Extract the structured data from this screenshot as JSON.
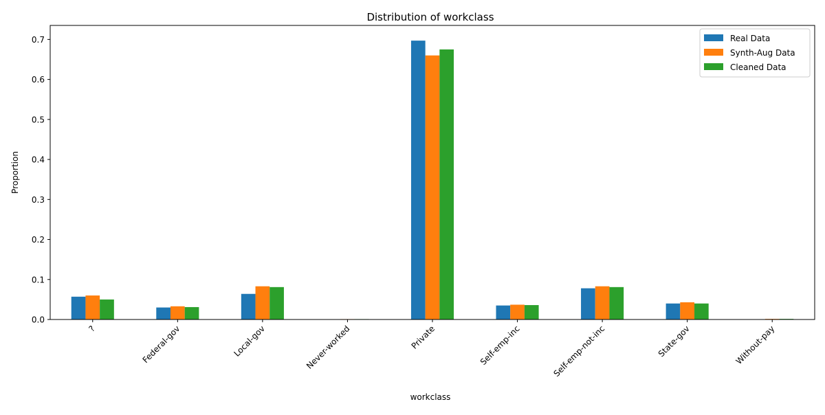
{
  "chart_data": {
    "type": "bar",
    "title": "Distribution of workclass",
    "xlabel": "workclass",
    "ylabel": "Proportion",
    "ylim": [
      0,
      0.735
    ],
    "yticks": [
      0.0,
      0.1,
      0.2,
      0.3,
      0.4,
      0.5,
      0.6,
      0.7
    ],
    "ytick_labels": [
      "0.0",
      "0.1",
      "0.2",
      "0.3",
      "0.4",
      "0.5",
      "0.6",
      "0.7"
    ],
    "categories": [
      "?",
      "Federal-gov",
      "Local-gov",
      "Never-worked",
      "Private",
      "Self-emp-inc",
      "Self-emp-not-inc",
      "State-gov",
      "Without-pay"
    ],
    "series": [
      {
        "name": "Real Data",
        "color": "#1f77b4",
        "values": [
          0.057,
          0.03,
          0.064,
          0.0002,
          0.697,
          0.035,
          0.078,
          0.04,
          0.0004
        ]
      },
      {
        "name": "Synth-Aug Data",
        "color": "#ff7f0e",
        "values": [
          0.06,
          0.033,
          0.083,
          0.001,
          0.66,
          0.037,
          0.083,
          0.043,
          0.0015
        ]
      },
      {
        "name": "Cleaned Data",
        "color": "#2ca02c",
        "values": [
          0.05,
          0.031,
          0.081,
          0.001,
          0.675,
          0.036,
          0.081,
          0.04,
          0.0015
        ]
      }
    ],
    "grid": false,
    "legend_position": "top-right"
  }
}
